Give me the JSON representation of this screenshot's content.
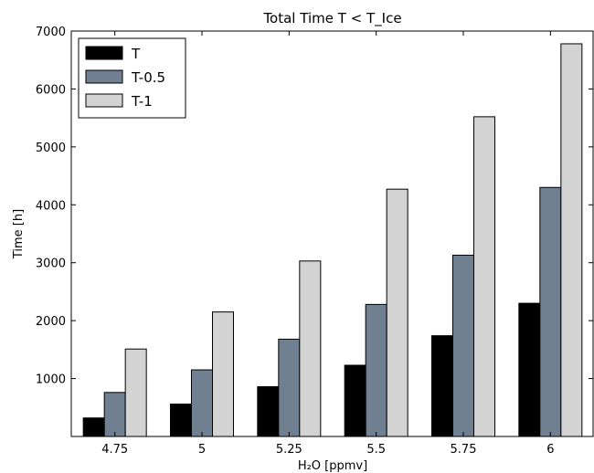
{
  "chart_data": {
    "type": "bar",
    "title": "Total Time T < T_Ice",
    "xlabel": "H₂O [ppmv]",
    "ylabel": "Time [h]",
    "ylim": [
      0,
      7000
    ],
    "y_ticks": [
      1000,
      2000,
      3000,
      4000,
      5000,
      6000,
      7000
    ],
    "categories": [
      "4.75",
      "5",
      "5.25",
      "5.5",
      "5.75",
      "6"
    ],
    "series": [
      {
        "name": "T",
        "color": "#000000",
        "values": [
          320,
          560,
          860,
          1230,
          1740,
          2300
        ]
      },
      {
        "name": "T-0.5",
        "color": "#708090",
        "values": [
          760,
          1150,
          1680,
          2280,
          3130,
          4300
        ]
      },
      {
        "name": "T-1",
        "color": "#d3d3d3",
        "values": [
          1510,
          2150,
          3030,
          4270,
          5520,
          6780
        ]
      }
    ],
    "legend_position": "top-left",
    "grid": false
  }
}
